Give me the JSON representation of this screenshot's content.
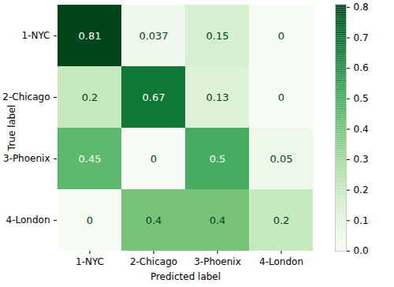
{
  "chart_data": {
    "type": "heatmap",
    "x_label": "Predicted label",
    "y_label": "True label",
    "x_categories": [
      "1-NYC",
      "2-Chicago",
      "3-Phoenix",
      "4-London"
    ],
    "y_categories": [
      "1-NYC",
      "2-Chicago",
      "3-Phoenix",
      "4-London"
    ],
    "cells": [
      [
        0.81,
        0.037,
        0.15,
        0
      ],
      [
        0.2,
        0.67,
        0.13,
        0
      ],
      [
        0.45,
        0,
        0.5,
        0.05
      ],
      [
        0,
        0.4,
        0.4,
        0.2
      ]
    ],
    "color": "greens",
    "colorbar": {
      "range": [
        0,
        0.81
      ],
      "ticks": [
        {
          "value": 0,
          "label": "0.0"
        },
        0.1,
        0.2,
        0.3,
        0.4,
        0.5,
        0.6,
        0.7,
        0.8
      ]
    },
    "data_labels": true
  }
}
